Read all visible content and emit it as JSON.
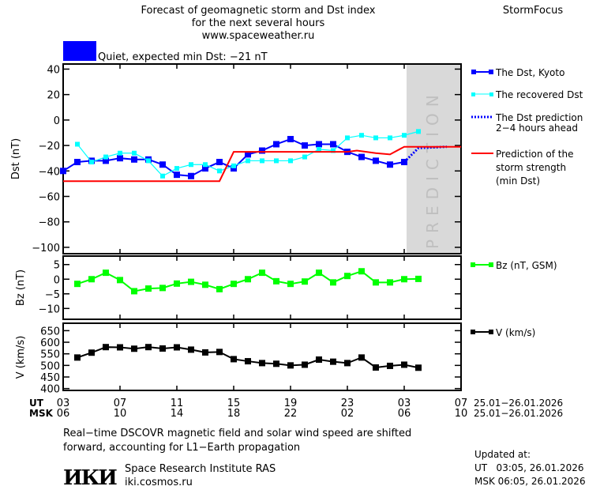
{
  "header": {
    "title_lines": [
      "Forecast of geomagnetic storm and Dst index",
      "for the next several hours",
      "www.spaceweather.ru"
    ],
    "brand": "StormFocus",
    "status_label": "Quiet, expected min Dst: −21 nT",
    "status_color": "#0000ff"
  },
  "prediction_band_label": "PREDICTION",
  "legend": {
    "dst_kyoto": "The Dst, Kyoto",
    "dst_recovered": "The recovered Dst",
    "dst_prediction": [
      "The Dst prediction",
      "2−4 hours ahead"
    ],
    "storm_strength": [
      "Prediction of the",
      "storm strength",
      "(min Dst)"
    ],
    "bz": "Bz (nT, GSM)",
    "v": "V (km/s)"
  },
  "time_axis": {
    "ut_label": "UT",
    "msk_label": "MSK",
    "ut_ticks": [
      "03",
      "07",
      "11",
      "15",
      "19",
      "23",
      "03",
      "07"
    ],
    "msk_ticks": [
      "06",
      "10",
      "14",
      "18",
      "22",
      "02",
      "06",
      "10"
    ],
    "ut_range": "25.01−26.01.2026",
    "msk_range": "25.01−26.01.2026"
  },
  "footer": {
    "note_lines": [
      "Real−time DSCOVR magnetic field and solar wind speed are shifted",
      "forward, accounting for L1−Earth propagation"
    ],
    "institute": "Space Research Institute RAS",
    "website": "iki.cosmos.ru",
    "logo_text": "ИКИ",
    "updated_label": "Updated at:",
    "updated_ut": "UT   03:05, 26.01.2026",
    "updated_msk": "MSK 06:05, 26.01.2026"
  },
  "chart_data": [
    {
      "type": "line",
      "ylabel": "Dst (nT)",
      "ylim": [
        -105,
        44
      ],
      "yticks": [
        40,
        20,
        0,
        -20,
        -40,
        -60,
        -80,
        -100
      ],
      "xlim": [
        "2026-01-25T03:00",
        "2026-01-26T07:00"
      ],
      "prediction_from": "2026-01-26T03:00",
      "series": [
        {
          "name": "The Dst, Kyoto",
          "color": "#0000ff",
          "start": "2026-01-25T03:00",
          "values": [
            -40,
            -33,
            -32,
            -32,
            -30,
            -31,
            -31,
            -35,
            -43,
            -44,
            -38,
            -33,
            -38,
            -27,
            -24,
            -19,
            -15,
            -20,
            -19,
            -19,
            -25,
            -29,
            -32,
            -35,
            -33
          ]
        },
        {
          "name": "The recovered Dst",
          "color": "#00ffff",
          "start": "2026-01-25T04:00",
          "values": [
            -19,
            -33,
            -29,
            -26,
            -26,
            -32,
            -44,
            -38,
            -35,
            -35,
            -40,
            -36,
            -32,
            -32,
            -32,
            -32,
            -29,
            -23,
            -24,
            -14,
            -12,
            -14,
            -14,
            -12,
            -9
          ]
        },
        {
          "name": "The Dst prediction 2−4 hours ahead",
          "color": "#0000ff",
          "style": "dotted",
          "points": [
            [
              "2026-01-26T03:00",
              -33
            ],
            [
              "2026-01-26T04:00",
              -22
            ],
            [
              "2026-01-26T06:00",
              -21
            ]
          ]
        },
        {
          "name": "Prediction of the storm strength (min Dst)",
          "color": "#ff0000",
          "points": [
            [
              "2026-01-25T03:00",
              -48
            ],
            [
              "2026-01-25T14:00",
              -48
            ],
            [
              "2026-01-25T15:00",
              -25
            ],
            [
              "2026-01-25T23:00",
              -25
            ],
            [
              "2026-01-25T23:40",
              -24
            ],
            [
              "2026-01-26T01:00",
              -26
            ],
            [
              "2026-01-26T02:00",
              -27
            ],
            [
              "2026-01-26T03:00",
              -21
            ],
            [
              "2026-01-26T07:00",
              -21
            ]
          ]
        }
      ]
    },
    {
      "type": "line",
      "ylabel": "Bz (nT)",
      "ylim": [
        -13.7,
        7.9
      ],
      "yticks": [
        5,
        0,
        -5,
        -10
      ],
      "series": [
        {
          "name": "Bz (nT, GSM)",
          "color": "#00ff00",
          "start": "2026-01-25T04:00",
          "values": [
            -1.6,
            0,
            2.2,
            -0.3,
            -4.1,
            -3.2,
            -3,
            -1.5,
            -0.9,
            -1.9,
            -3.4,
            -1.6,
            0,
            2.2,
            -0.7,
            -1.6,
            -0.8,
            2.2,
            -1.1,
            1.1,
            2.7,
            -1.1,
            -1.1,
            0,
            0.1
          ]
        }
      ]
    },
    {
      "type": "line",
      "ylabel": "V (km/s)",
      "ylim": [
        392,
        682
      ],
      "yticks": [
        650,
        600,
        550,
        500,
        450,
        400
      ],
      "series": [
        {
          "name": "V (km/s)",
          "color": "#000000",
          "start": "2026-01-25T04:00",
          "values": [
            534,
            555,
            579,
            578,
            572,
            579,
            573,
            578,
            568,
            556,
            558,
            527,
            518,
            510,
            507,
            500,
            503,
            525,
            516,
            510,
            534,
            491,
            498,
            503,
            490
          ]
        }
      ]
    }
  ]
}
